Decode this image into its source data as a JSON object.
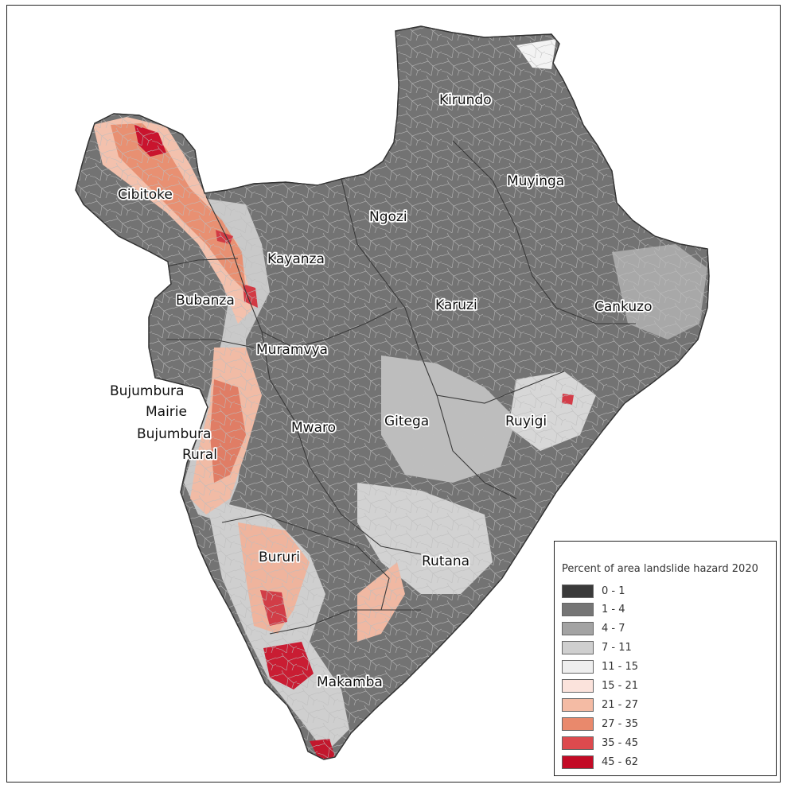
{
  "map": {
    "regions": [
      {
        "name": "Kirundo"
      },
      {
        "name": "Muyinga"
      },
      {
        "name": "Cibitoke"
      },
      {
        "name": "Ngozi"
      },
      {
        "name": "Kayanza"
      },
      {
        "name": "Karuzi"
      },
      {
        "name": "Cankuzo"
      },
      {
        "name": "Bubanza"
      },
      {
        "name": "Muramvya"
      },
      {
        "name": "Bujumbura"
      },
      {
        "name": "Mairie"
      },
      {
        "name": "Gitega"
      },
      {
        "name": "Ruyigi"
      },
      {
        "name": "Mwaro"
      },
      {
        "name": "Bujumbura"
      },
      {
        "name": "Rural"
      },
      {
        "name": "Bururi"
      },
      {
        "name": "Rutana"
      },
      {
        "name": "Makamba"
      }
    ]
  },
  "legend": {
    "title": "Percent of area landslide hazard 2020",
    "classes": [
      {
        "label": "0 - 1",
        "color": "#3a3a3a"
      },
      {
        "label": "1 - 4",
        "color": "#757575"
      },
      {
        "label": "4 - 7",
        "color": "#a3a3a3"
      },
      {
        "label": "7 - 11",
        "color": "#cfcfcf"
      },
      {
        "label": "11 - 15",
        "color": "#eeeeee"
      },
      {
        "label": "15 - 21",
        "color": "#fbe3dc"
      },
      {
        "label": "21 - 27",
        "color": "#f4bba4"
      },
      {
        "label": "27 - 35",
        "color": "#e9896c"
      },
      {
        "label": "35 - 45",
        "color": "#dd4a4e"
      },
      {
        "label": "45 - 62",
        "color": "#c30a25"
      }
    ]
  }
}
